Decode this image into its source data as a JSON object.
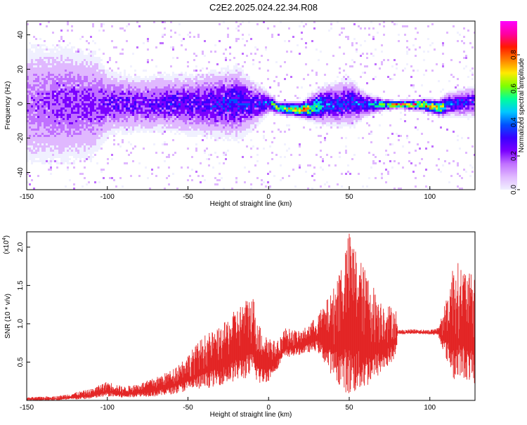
{
  "title": "C2E2.2025.024.22.34.R08",
  "colors": {
    "snr_line": "#e32424",
    "axis": "#000000",
    "background": "#ffffff",
    "colormap": [
      "#f0f0ff",
      "#e0b8ff",
      "#c070ff",
      "#7a00ff",
      "#3a00ff",
      "#0050ff",
      "#00c8ff",
      "#00ff99",
      "#80ff00",
      "#ffea00",
      "#ff8000",
      "#ff1a00",
      "#ff00a0",
      "#ff00ff"
    ]
  },
  "chart_data": [
    {
      "type": "heatmap",
      "name": "spectrogram",
      "xlabel": "Height of straight line (km)",
      "ylabel": "Frequency (Hz)",
      "xlim": [
        -150,
        128
      ],
      "ylim": [
        -50,
        48
      ],
      "xticks": [
        "-150",
        "-100",
        "-50",
        "0",
        "50",
        "100"
      ],
      "xtick_values": [
        -150,
        -100,
        -50,
        0,
        50,
        100
      ],
      "yticks": [
        "40",
        "20",
        "0",
        "-20",
        "-40"
      ],
      "ytick_values": [
        40,
        20,
        0,
        -20,
        -40
      ],
      "colorbar": {
        "label": "Normalized spectral amplitude",
        "range": [
          0,
          1
        ],
        "ticks": [
          "0.0",
          "0.2",
          "0.4",
          "0.6",
          "0.8"
        ],
        "tick_values": [
          0.0,
          0.2,
          0.4,
          0.6,
          0.8
        ]
      },
      "band_profile": {
        "x": [
          -150,
          -130,
          -110,
          -100,
          -80,
          -60,
          -40,
          -20,
          -10,
          0,
          5,
          20,
          35,
          50,
          60,
          70,
          80,
          95,
          105,
          110,
          128
        ],
        "center_hz": [
          0,
          0,
          0,
          1,
          0,
          1,
          0,
          1,
          0,
          1,
          -2,
          -3,
          0,
          1,
          0,
          0,
          0,
          0,
          -2,
          0,
          2
        ],
        "spread_hz": [
          32,
          30,
          28,
          16,
          14,
          14,
          16,
          18,
          12,
          5,
          3,
          4,
          10,
          12,
          6,
          3,
          2,
          3,
          4,
          6,
          8
        ],
        "peak_amplitude": [
          0.25,
          0.3,
          0.3,
          0.35,
          0.35,
          0.4,
          0.4,
          0.45,
          0.4,
          0.5,
          0.9,
          0.95,
          0.5,
          0.45,
          0.5,
          0.75,
          0.98,
          0.98,
          0.95,
          0.5,
          0.4
        ]
      }
    },
    {
      "type": "line",
      "name": "snr",
      "xlabel": "Height of straight line (km)",
      "ylabel": "SNR (10 * v/v)",
      "y_multiplier": "(x10",
      "y_multiplier_exp": "4",
      "y_multiplier_close": ")",
      "xlim": [
        -150,
        128
      ],
      "ylim": [
        0,
        2.2
      ],
      "xticks": [
        "-150",
        "-100",
        "-50",
        "0",
        "50",
        "100"
      ],
      "xtick_values": [
        -150,
        -100,
        -50,
        0,
        50,
        100
      ],
      "yticks": [
        "2.0",
        "1.5",
        "1.0",
        "0.5"
      ],
      "ytick_values": [
        2.0,
        1.5,
        1.0,
        0.5
      ],
      "envelope": {
        "x": [
          -150,
          -130,
          -110,
          -100,
          -90,
          -80,
          -70,
          -60,
          -50,
          -40,
          -30,
          -20,
          -10,
          -5,
          0,
          5,
          10,
          20,
          30,
          40,
          50,
          60,
          70,
          79,
          80,
          90,
          100,
          105,
          110,
          115,
          120,
          128
        ],
        "upper": [
          0.04,
          0.06,
          0.15,
          0.25,
          0.18,
          0.22,
          0.3,
          0.4,
          0.6,
          0.85,
          0.95,
          1.2,
          1.4,
          0.95,
          0.85,
          0.75,
          0.95,
          0.9,
          1.1,
          1.45,
          2.2,
          1.7,
          1.3,
          1.2,
          0.92,
          0.93,
          0.92,
          0.95,
          1.3,
          1.85,
          1.75,
          1.6
        ],
        "lower": [
          0.0,
          0.0,
          0.02,
          0.05,
          0.03,
          0.05,
          0.05,
          0.08,
          0.12,
          0.15,
          0.2,
          0.25,
          0.3,
          0.2,
          0.25,
          0.4,
          0.55,
          0.6,
          0.65,
          0.3,
          0.05,
          0.15,
          0.35,
          0.55,
          0.86,
          0.87,
          0.86,
          0.85,
          0.55,
          0.25,
          0.3,
          0.2
        ]
      }
    }
  ]
}
